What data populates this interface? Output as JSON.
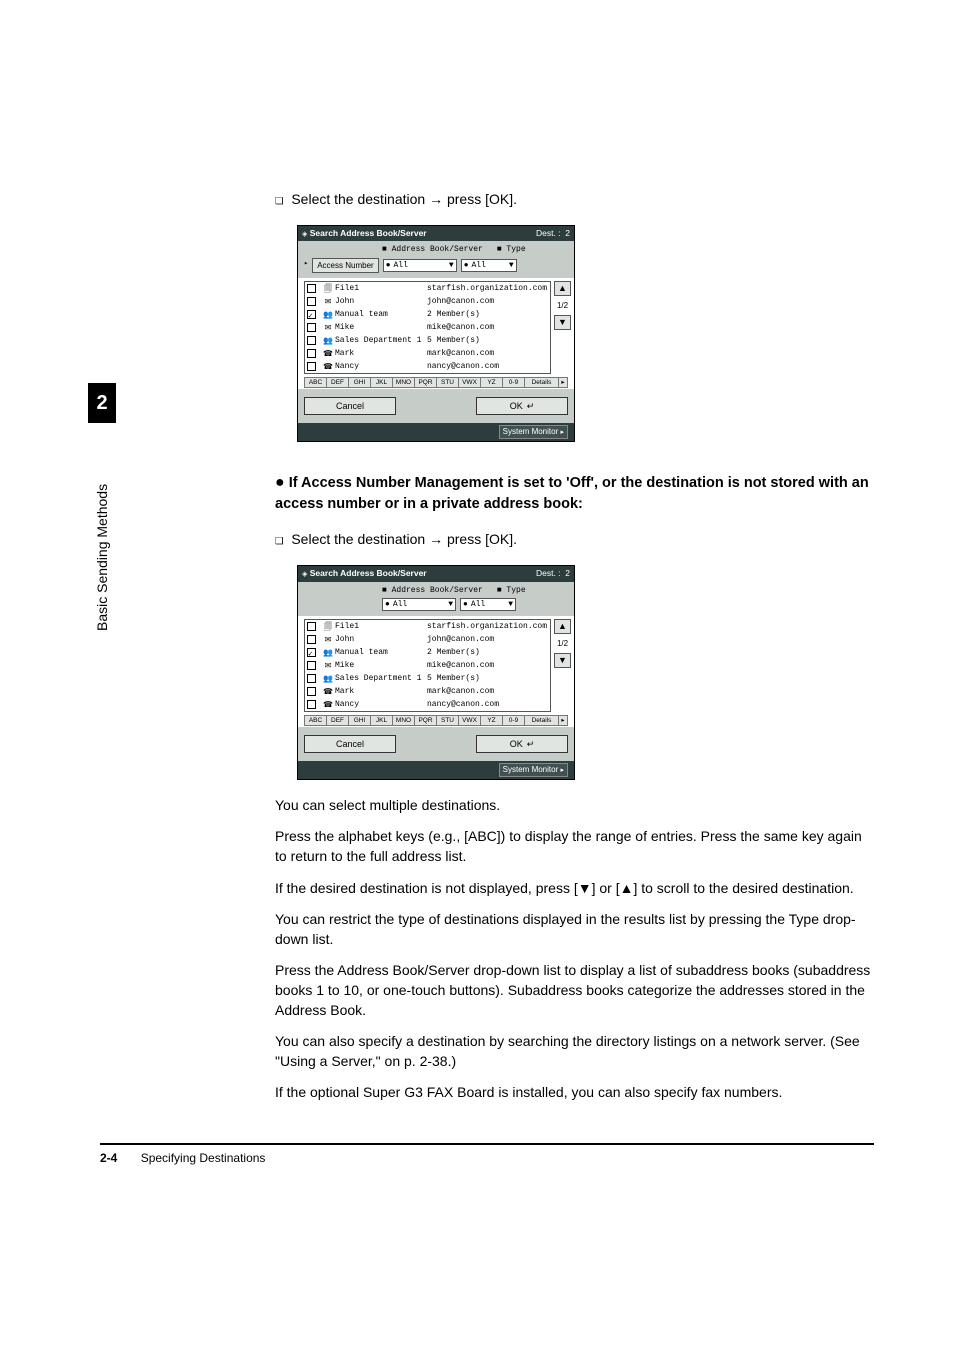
{
  "sidebar": {
    "chapter_number": "2",
    "chapter_title": "Basic Sending Methods"
  },
  "steps": {
    "select_dest": "Select the destination → press [OK]."
  },
  "heading": {
    "bullet": "●",
    "text": "If Access Number Management is set to 'Off', or the destination is not stored with an access number or in a private address book:"
  },
  "paras": {
    "p1": "You can select multiple destinations.",
    "p2": "Press the alphabet keys (e.g., [ABC]) to display the range of entries. Press the same key again to return to the full address list.",
    "p3": "If the desired destination is not displayed, press [▼] or [▲] to scroll to the desired destination.",
    "p4": "You can restrict the type of destinations displayed in the results list by pressing the Type drop-down list.",
    "p5": "Press the Address Book/Server drop-down list to display a list of subaddress books (subaddress books 1 to 10, or one-touch buttons). Subaddress books categorize the addresses stored in the Address Book.",
    "p6": "You can also specify a destination by searching the directory listings on a network server. (See \"Using a Server,\" on p. 2-38.)",
    "p7": "If the optional Super G3 FAX Board is installed, you can also specify fax numbers."
  },
  "footer": {
    "page_number": "2-4",
    "section": "Specifying Destinations"
  },
  "panel": {
    "titlebar": {
      "left": "Search Address Book/Server",
      "right_label": "Dest. :",
      "right_count": "2"
    },
    "labels": {
      "book_server": "■ Address Book/Server",
      "type": "■ Type"
    },
    "access_number_btn": "Access Number",
    "dropdown_book": "All",
    "dropdown_type": "All",
    "page_indicator": "1/2",
    "cancel": "Cancel",
    "ok": "OK",
    "system_monitor": "System Monitor",
    "details_btn": "Details",
    "alpha_keys": [
      "ABC",
      "DEF",
      "GHI",
      "JKL",
      "MNO",
      "PQR",
      "STU",
      "VWX",
      "YZ",
      "0-9"
    ],
    "rows": [
      {
        "icon": "🗐",
        "name": "File1",
        "detail": "starfish.organization.com",
        "checked": false
      },
      {
        "icon": "✉",
        "name": "John",
        "detail": "john@canon.com",
        "checked": false
      },
      {
        "icon": "👥",
        "name": "Manual team",
        "detail": "2 Member(s)",
        "checked": true
      },
      {
        "icon": "✉",
        "name": "Mike",
        "detail": "mike@canon.com",
        "checked": false
      },
      {
        "icon": "👥",
        "name": "Sales Department 1",
        "detail": "5 Member(s)",
        "checked": false
      },
      {
        "icon": "☎",
        "name": "Mark",
        "detail": "mark@canon.com",
        "checked": false
      },
      {
        "icon": "☎",
        "name": "Nancy",
        "detail": "nancy@canon.com",
        "checked": false
      }
    ]
  }
}
